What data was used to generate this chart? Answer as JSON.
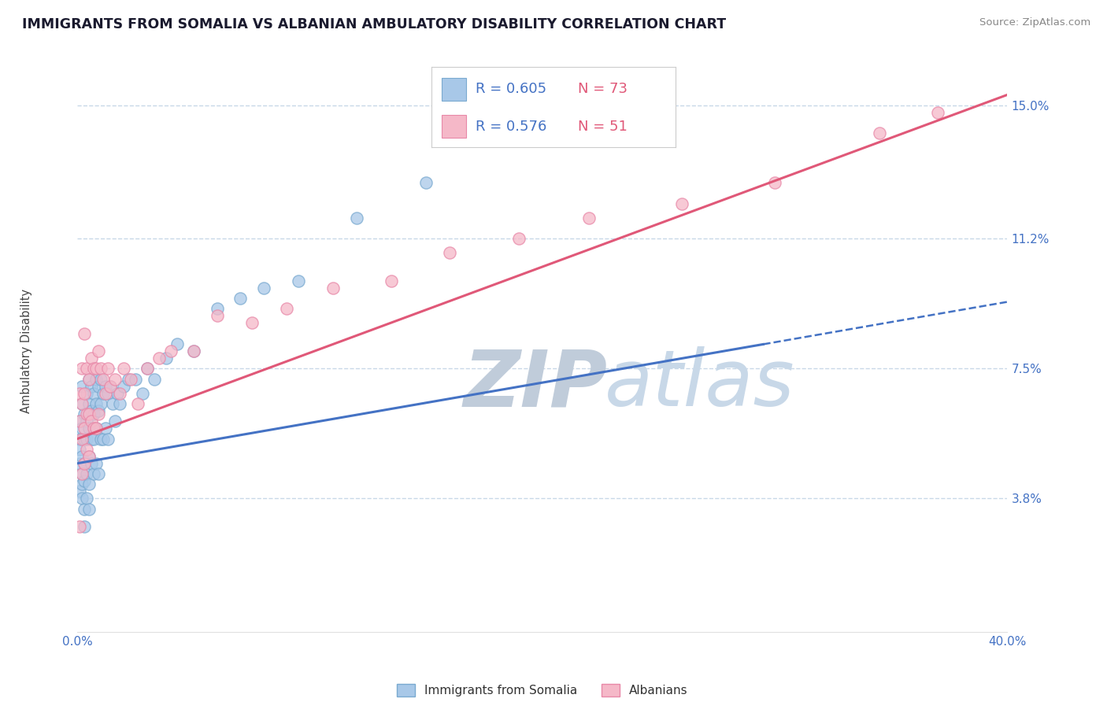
{
  "title": "IMMIGRANTS FROM SOMALIA VS ALBANIAN AMBULATORY DISABILITY CORRELATION CHART",
  "source": "Source: ZipAtlas.com",
  "xmin": 0.0,
  "xmax": 0.4,
  "ymin": 0.0,
  "ymax": 0.16,
  "series1_label": "Immigrants from Somalia",
  "series1_R": "0.605",
  "series1_N": "73",
  "series1_color": "#a8c8e8",
  "series1_edge": "#7aaad0",
  "series2_label": "Albanians",
  "series2_R": "0.576",
  "series2_N": "51",
  "series2_color": "#f5b8c8",
  "series2_edge": "#e888a8",
  "line1_color": "#4472c4",
  "line2_color": "#e05878",
  "axis_label_color": "#4472c4",
  "grid_color": "#c8d8e8",
  "watermark_zip": "ZIP",
  "watermark_atlas": "atlas",
  "watermark_zip_color": "#c0ccda",
  "watermark_atlas_color": "#c8d8e8",
  "legend_R_color": "#4472c4",
  "legend_N_color": "#e05878",
  "ytick_vals": [
    0.038,
    0.075,
    0.112,
    0.15
  ],
  "ytick_labels": [
    "3.8%",
    "7.5%",
    "11.2%",
    "15.0%"
  ],
  "somalia_x": [
    0.001,
    0.001,
    0.001,
    0.001,
    0.001,
    0.002,
    0.002,
    0.002,
    0.002,
    0.002,
    0.002,
    0.002,
    0.003,
    0.003,
    0.003,
    0.003,
    0.003,
    0.003,
    0.004,
    0.004,
    0.004,
    0.004,
    0.004,
    0.005,
    0.005,
    0.005,
    0.005,
    0.005,
    0.005,
    0.006,
    0.006,
    0.006,
    0.006,
    0.007,
    0.007,
    0.007,
    0.007,
    0.008,
    0.008,
    0.008,
    0.008,
    0.009,
    0.009,
    0.009,
    0.01,
    0.01,
    0.01,
    0.011,
    0.011,
    0.012,
    0.012,
    0.013,
    0.013,
    0.014,
    0.015,
    0.016,
    0.017,
    0.018,
    0.02,
    0.022,
    0.025,
    0.028,
    0.03,
    0.033,
    0.038,
    0.043,
    0.05,
    0.06,
    0.07,
    0.08,
    0.095,
    0.12,
    0.15
  ],
  "somalia_y": [
    0.055,
    0.06,
    0.052,
    0.048,
    0.04,
    0.065,
    0.058,
    0.05,
    0.045,
    0.038,
    0.07,
    0.042,
    0.062,
    0.055,
    0.048,
    0.043,
    0.035,
    0.03,
    0.068,
    0.06,
    0.055,
    0.045,
    0.038,
    0.072,
    0.065,
    0.058,
    0.05,
    0.042,
    0.035,
    0.07,
    0.063,
    0.055,
    0.048,
    0.068,
    0.062,
    0.055,
    0.045,
    0.072,
    0.065,
    0.058,
    0.048,
    0.07,
    0.063,
    0.045,
    0.072,
    0.065,
    0.055,
    0.068,
    0.055,
    0.07,
    0.058,
    0.068,
    0.055,
    0.07,
    0.065,
    0.06,
    0.068,
    0.065,
    0.07,
    0.072,
    0.072,
    0.068,
    0.075,
    0.072,
    0.078,
    0.082,
    0.08,
    0.092,
    0.095,
    0.098,
    0.1,
    0.118,
    0.128
  ],
  "albanian_x": [
    0.001,
    0.001,
    0.001,
    0.002,
    0.002,
    0.002,
    0.002,
    0.003,
    0.003,
    0.003,
    0.003,
    0.004,
    0.004,
    0.004,
    0.005,
    0.005,
    0.005,
    0.006,
    0.006,
    0.007,
    0.007,
    0.008,
    0.008,
    0.009,
    0.009,
    0.01,
    0.011,
    0.012,
    0.013,
    0.014,
    0.016,
    0.018,
    0.02,
    0.023,
    0.026,
    0.03,
    0.035,
    0.04,
    0.05,
    0.06,
    0.075,
    0.09,
    0.11,
    0.135,
    0.16,
    0.19,
    0.22,
    0.26,
    0.3,
    0.345,
    0.37
  ],
  "albanian_y": [
    0.068,
    0.06,
    0.03,
    0.075,
    0.065,
    0.055,
    0.045,
    0.085,
    0.068,
    0.058,
    0.048,
    0.075,
    0.062,
    0.052,
    0.072,
    0.062,
    0.05,
    0.078,
    0.06,
    0.075,
    0.058,
    0.075,
    0.058,
    0.08,
    0.062,
    0.075,
    0.072,
    0.068,
    0.075,
    0.07,
    0.072,
    0.068,
    0.075,
    0.072,
    0.065,
    0.075,
    0.078,
    0.08,
    0.08,
    0.09,
    0.088,
    0.092,
    0.098,
    0.1,
    0.108,
    0.112,
    0.118,
    0.122,
    0.128,
    0.142,
    0.148
  ]
}
